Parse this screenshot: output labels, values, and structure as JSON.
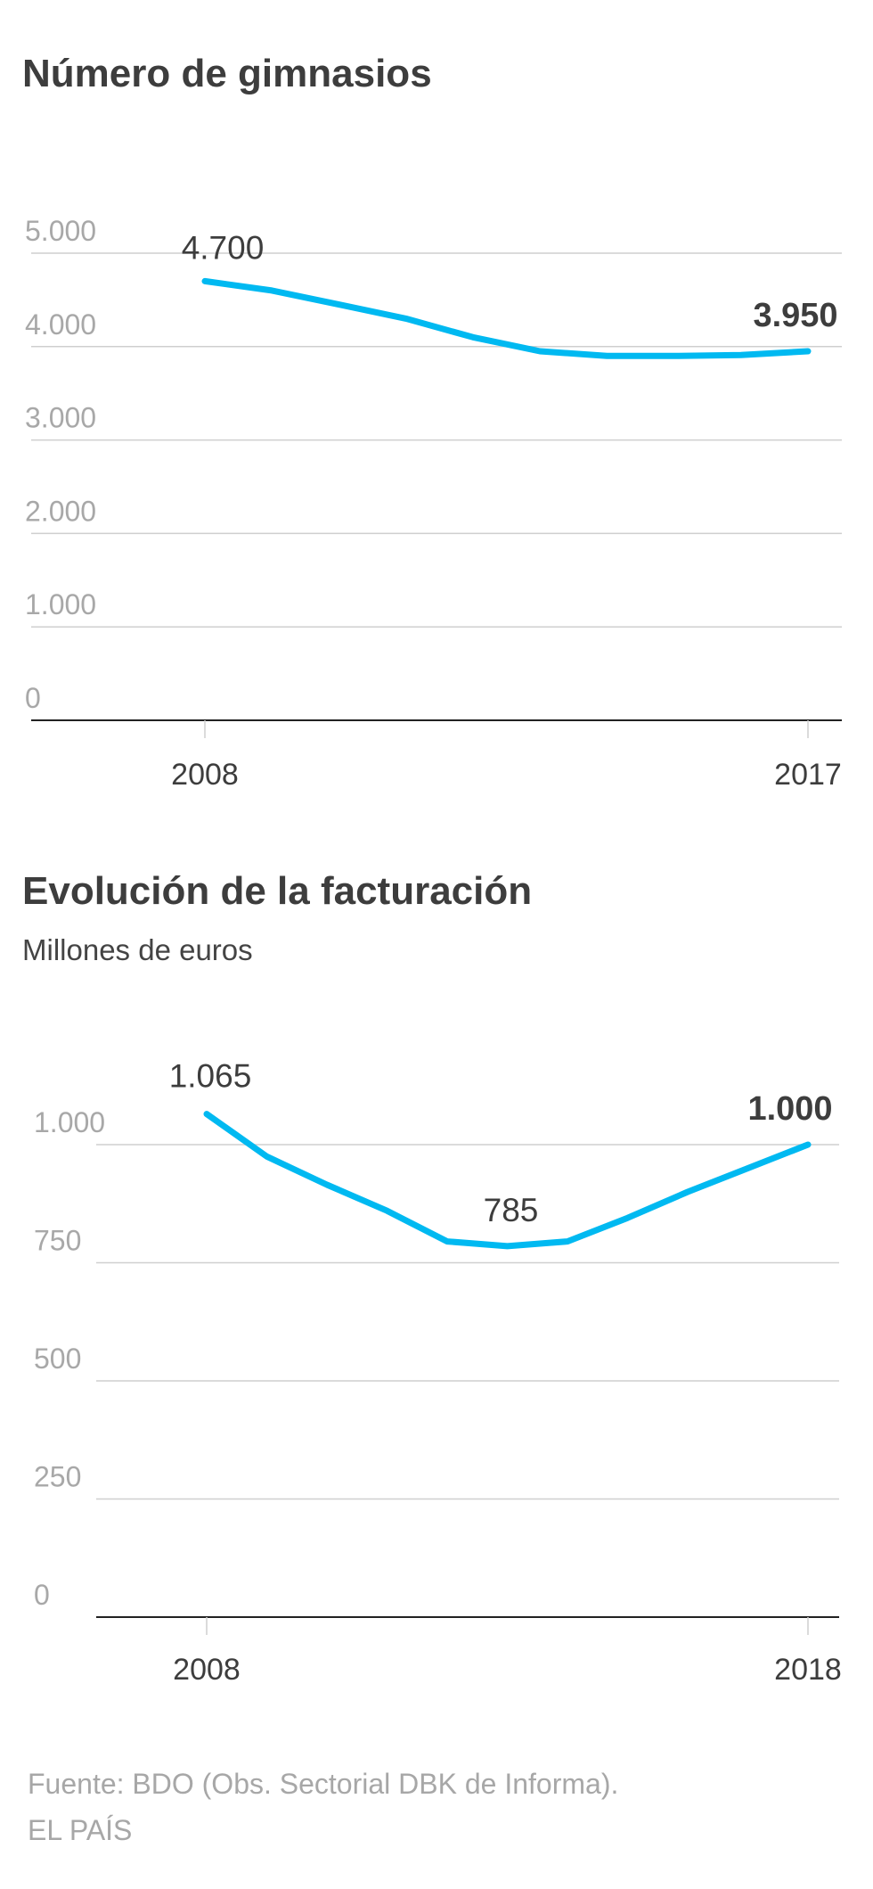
{
  "charts": [
    {
      "title": "Número de gimnasios",
      "subtitle": "",
      "chart_data": {
        "type": "line",
        "x": [
          2008,
          2009,
          2010,
          2011,
          2012,
          2013,
          2014,
          2015,
          2016,
          2017
        ],
        "series": [
          {
            "values": [
              4700,
              4600,
              4450,
              4300,
              4100,
              3950,
              3900,
              3900,
              3910,
              3950
            ]
          }
        ],
        "yticks": [
          0,
          1000,
          2000,
          3000,
          4000,
          5000
        ],
        "ytick_labels": [
          "0",
          "1.000",
          "2.000",
          "3.000",
          "4.000",
          "5.000"
        ],
        "ylim": [
          0,
          5000
        ],
        "xticks": [
          2008,
          2017
        ],
        "xtick_labels": [
          "2008",
          "2017"
        ],
        "annotations": [
          {
            "x": 2008,
            "y": 4700,
            "label": "4.700",
            "bold": false
          },
          {
            "x": 2017,
            "y": 3950,
            "label": "3.950",
            "bold": true
          }
        ],
        "grid": true,
        "xlabel": "",
        "ylabel": ""
      }
    },
    {
      "title": "Evolución de la facturación",
      "subtitle": "Millones de euros",
      "chart_data": {
        "type": "line",
        "x": [
          2008,
          2009,
          2010,
          2011,
          2012,
          2013,
          2014,
          2015,
          2016,
          2017,
          2018
        ],
        "series": [
          {
            "values": [
              1065,
              975,
              915,
              860,
              795,
              785,
              795,
              845,
              900,
              950,
              1000
            ]
          }
        ],
        "yticks": [
          0,
          250,
          500,
          750,
          1000
        ],
        "ytick_labels": [
          "0",
          "250",
          "500",
          "750",
          "1.000"
        ],
        "ylim": [
          0,
          1000
        ],
        "xticks": [
          2008,
          2018
        ],
        "xtick_labels": [
          "2008",
          "2018"
        ],
        "annotations": [
          {
            "x": 2008,
            "y": 1065,
            "label": "1.065",
            "bold": false
          },
          {
            "x": 2013,
            "y": 785,
            "label": "785",
            "bold": false
          },
          {
            "x": 2018,
            "y": 1000,
            "label": "1.000",
            "bold": true
          }
        ],
        "grid": true,
        "xlabel": "",
        "ylabel": ""
      }
    }
  ],
  "colors": {
    "line": "#00b9f1",
    "grid": "#cfcfcf",
    "axis": "#222222",
    "tick_label": "#a8a8a8",
    "text": "#3d3d3d"
  },
  "source": {
    "line1": "Fuente: BDO (Obs. Sectorial DBK de Informa).",
    "line2": "EL PAÍS"
  }
}
